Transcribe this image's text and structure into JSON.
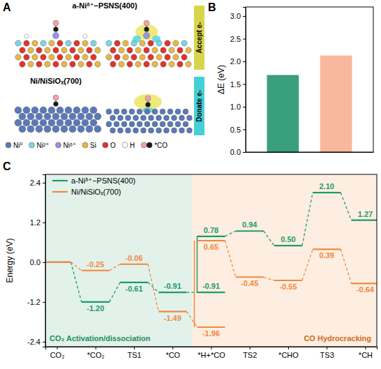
{
  "panel_labels": [
    "A",
    "B",
    "C"
  ],
  "panel_a": {
    "structures": [
      {
        "title": "a-Niᵟ⁺−PSNS(400)",
        "tag": "Accept e-"
      },
      {
        "title": "Ni/NiSiOₓ(700)",
        "tag": "Donate e-"
      }
    ],
    "legend": [
      {
        "label": "Ni⁰",
        "color": "#5b79b9"
      },
      {
        "label": "Ni²⁺",
        "color": "#7fd3e4"
      },
      {
        "label": "Niᵟ⁺",
        "color": "#9496e2"
      },
      {
        "label": "Si",
        "color": "#e6b84a"
      },
      {
        "label": "O",
        "color": "#e0342c"
      },
      {
        "label": "H",
        "color": "#ffffff"
      },
      {
        "label": "*CO",
        "colors": [
          "#f2a3a8",
          "#1a1a1a"
        ]
      }
    ]
  },
  "chart_data": [
    {
      "type": "bar",
      "y_label": "ΔE (eV)",
      "categories": [
        null,
        null
      ],
      "values": [
        1.7,
        2.13
      ],
      "colors": [
        "#3a9f7c",
        "#f8b89b"
      ],
      "ylim": [
        0,
        3.2
      ],
      "yticks": [
        {
          "value": 0,
          "label": "0.0"
        },
        0.5,
        {
          "value": 1,
          "label": "1.0"
        },
        1.5,
        {
          "value": 2,
          "label": "2.0"
        },
        2.5,
        {
          "value": 3,
          "label": "3.0"
        }
      ],
      "tick_labels": "y"
    },
    {
      "type": "energy_profile",
      "y_label": "Energy (eV)",
      "categories": [
        "CO₂",
        "*CO₂",
        "TS1",
        "*CO",
        "*H+*CO",
        "TS2",
        "*CHO",
        "TS3",
        "*CH"
      ],
      "series": [
        {
          "name": "a-Niᵟ⁺−PSNS(400)",
          "color": "#1f9a6b",
          "values": [
            0,
            -1.2,
            -0.61,
            -0.91,
            -0.91,
            0.94,
            0.5,
            2.1,
            1.27
          ],
          "value_labels": [
            null,
            "-1.20",
            "-0.61",
            "-0.91",
            "-0.91",
            "0.94",
            "0.50",
            "2.10",
            "1.27"
          ],
          "upper_values": [
            null,
            null,
            null,
            null,
            0.78,
            null,
            null,
            null,
            null
          ],
          "upper_value_labels": [
            null,
            null,
            null,
            null,
            "0.78",
            null,
            null,
            null,
            null
          ]
        },
        {
          "name": "Ni/NiSiOₓ(700)",
          "color": "#f0883e",
          "values": [
            0,
            -0.25,
            -0.06,
            -1.49,
            -1.96,
            -0.45,
            -0.55,
            0.39,
            -0.64
          ],
          "value_labels": [
            null,
            "-0.25",
            "-0.06",
            "-1.49",
            "-1.96",
            "-0.45",
            "-0.55",
            "0.39",
            "-0.64"
          ],
          "upper_values": [
            null,
            null,
            null,
            null,
            0.65,
            null,
            null,
            null,
            null
          ],
          "upper_value_labels": [
            null,
            null,
            null,
            null,
            "0.65",
            null,
            null,
            null,
            null
          ]
        }
      ],
      "regions": [
        {
          "label": "CO₂ Activation/dissociation",
          "color": "#e2f2ea",
          "from": "CO₂",
          "to": "*CO"
        },
        {
          "label": "CO Hydrocracking",
          "color": "#fdeee1",
          "from": "*H+*CO",
          "to": "*CH"
        }
      ],
      "ylim": [
        -2.55,
        2.65
      ],
      "yticks": [
        -2.4,
        -1.2,
        {
          "value": 0,
          "label": "0.0"
        },
        1.2,
        2.4
      ],
      "legend": "top-left",
      "data_labels": true,
      "line_style": "dashed"
    }
  ]
}
